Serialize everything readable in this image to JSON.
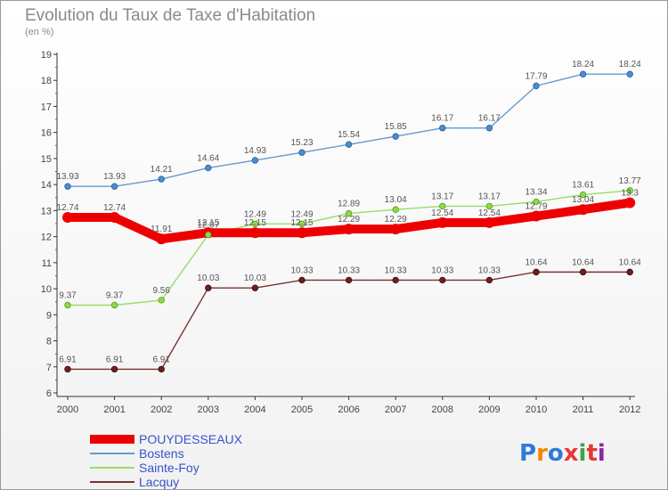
{
  "title": "Evolution du Taux de Taxe d'Habitation",
  "subtitle": "(en %)",
  "logo": "Proxiti",
  "chart_data": {
    "type": "line",
    "title": "Evolution du Taux de Taxe d'Habitation",
    "ylabel": "(en %)",
    "ylim": [
      6,
      19
    ],
    "y_ticks": [
      6,
      7,
      8,
      9,
      10,
      11,
      12,
      13,
      14,
      15,
      16,
      17,
      18,
      19
    ],
    "categories": [
      "2000",
      "2001",
      "2002",
      "2003",
      "2004",
      "2005",
      "2006",
      "2007",
      "2008",
      "2009",
      "2010",
      "2011",
      "2012"
    ],
    "legend_position": "bottom-left",
    "grid": false,
    "series": [
      {
        "name": "POUYDESSEAUX",
        "color": "#ee0000",
        "values": [
          12.74,
          12.74,
          11.91,
          12.15,
          12.15,
          12.15,
          12.29,
          12.29,
          12.54,
          12.54,
          12.79,
          13.04,
          13.3
        ]
      },
      {
        "name": "Bostens",
        "color": "#6699cc",
        "values": [
          13.93,
          13.93,
          14.21,
          14.64,
          14.93,
          15.23,
          15.54,
          15.85,
          16.17,
          16.17,
          17.79,
          18.24,
          18.24
        ]
      },
      {
        "name": "Sainte-Foy",
        "color": "#99dd66",
        "values": [
          9.37,
          9.37,
          9.56,
          12.07,
          12.49,
          12.49,
          12.89,
          13.04,
          13.17,
          13.17,
          13.34,
          13.61,
          13.77
        ]
      },
      {
        "name": "Lacquy",
        "color": "#7a3333",
        "values": [
          6.91,
          6.91,
          6.91,
          10.03,
          10.03,
          10.33,
          10.33,
          10.33,
          10.33,
          10.33,
          10.64,
          10.64,
          10.64
        ]
      }
    ],
    "data_labels": [
      [
        "12.74",
        "12.74",
        "11.91",
        "12.15",
        "12.15",
        "12.15",
        "12.29",
        "12.29",
        "12.54",
        "12.54",
        "12.79",
        "13.04",
        "13.3"
      ],
      [
        "13.93",
        "13.93",
        "14.21",
        "14.64",
        "14.93",
        "15.23",
        "15.54",
        "15.85",
        "16.17",
        "16.17",
        "17.79",
        "18.24",
        "18.24"
      ],
      [
        "9.37",
        "9.37",
        "9.56",
        "12.07",
        "12.49",
        "12.49",
        "12.89",
        "13.04",
        "13.17",
        "13.17",
        "13.34",
        "13.61",
        "13.77"
      ],
      [
        "6.91",
        "6.91",
        "6.91",
        "10.03",
        "10.03",
        "10.33",
        "10.33",
        "10.33",
        "10.33",
        "10.33",
        "10.64",
        "10.64",
        "10.64"
      ]
    ]
  }
}
